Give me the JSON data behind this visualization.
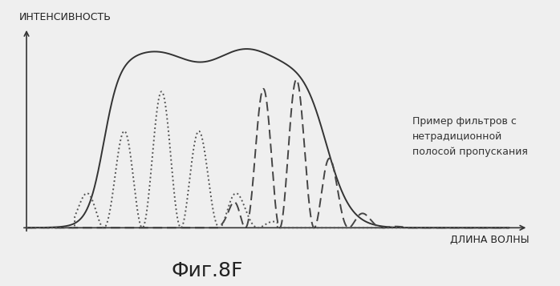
{
  "title": "Фиг.8F",
  "ylabel": "ИНТЕНСИВНОСТЬ",
  "xlabel": "ДЛИНА ВОЛНЫ",
  "annotation": "Пример фильтров с\nнетрадиционной\nполосой пропускания",
  "background_color": "#efefef",
  "text_color": "#222222",
  "xlim": [
    0,
    10
  ],
  "ylim": [
    0,
    1.05
  ]
}
